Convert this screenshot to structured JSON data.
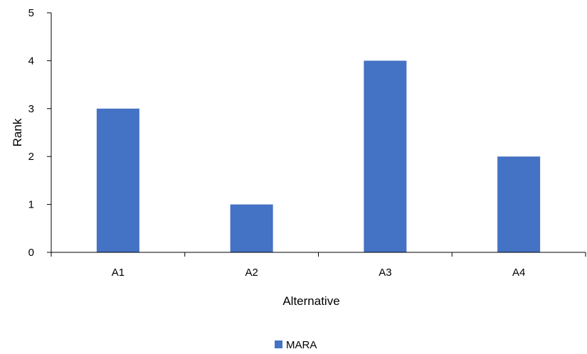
{
  "chart_data": {
    "type": "bar",
    "categories": [
      "A1",
      "A2",
      "A3",
      "A4"
    ],
    "series": [
      {
        "name": "MARA",
        "values": [
          3,
          1,
          4,
          2
        ],
        "color": "#4472C4"
      }
    ],
    "xlabel": "Alternative",
    "ylabel": "Rank",
    "ylim": [
      0,
      5
    ],
    "yticks": [
      "0",
      "1",
      "2",
      "3",
      "4",
      "5"
    ],
    "grid": false,
    "legend": "bottom-center"
  }
}
